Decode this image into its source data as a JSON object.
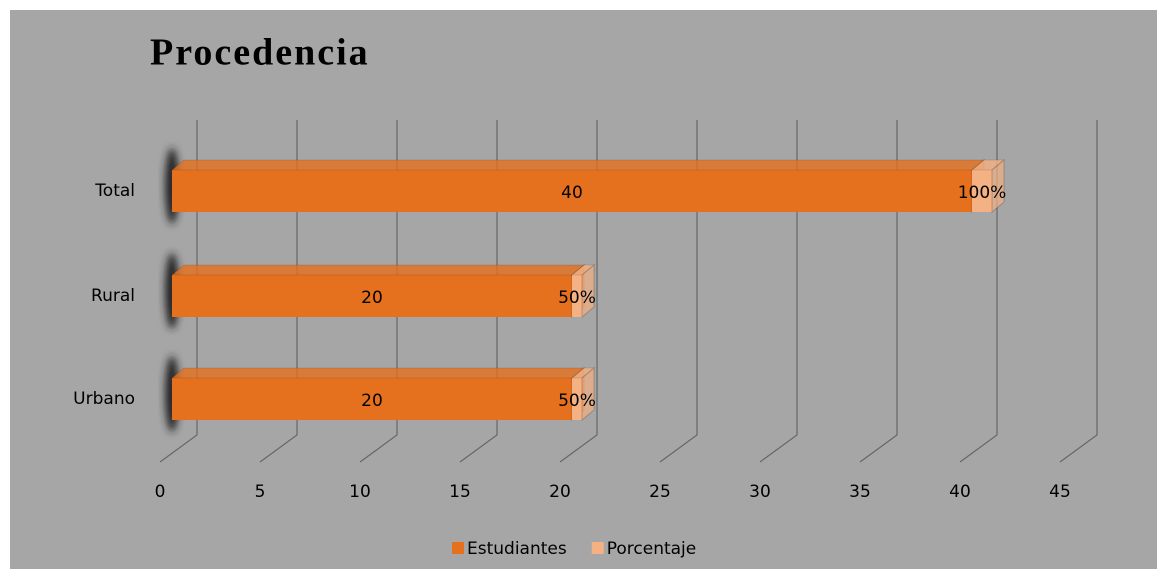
{
  "chart_data": {
    "type": "bar3d_stacked_horizontal",
    "title": "Procedencia",
    "categories": [
      "Urbano",
      "Rural",
      "Total"
    ],
    "series": [
      {
        "name": "Estudiantes",
        "color": "#e5711f",
        "values": [
          20,
          20,
          40
        ]
      },
      {
        "name": "Porcentaje",
        "color": "#f4b183",
        "values": [
          0.5,
          0.5,
          1
        ],
        "value_labels": [
          "50%",
          "50%",
          "100%"
        ]
      }
    ],
    "xlim": [
      0,
      45
    ],
    "xticks": [
      0,
      5,
      10,
      15,
      20,
      25,
      30,
      35,
      40,
      45
    ],
    "grid": true,
    "legend": "bottom"
  }
}
